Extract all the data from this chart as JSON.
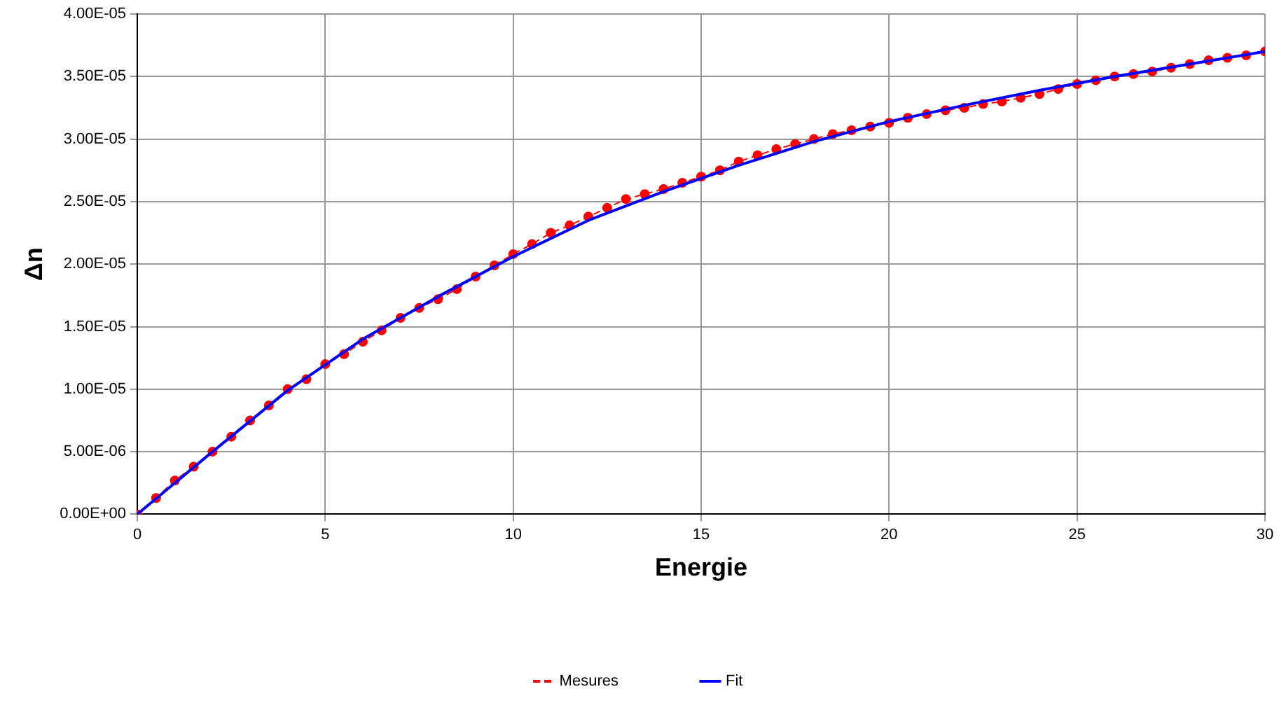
{
  "chart_data": {
    "type": "line",
    "xlabel": "Energie",
    "ylabel": "Δn",
    "xlim": [
      0,
      30
    ],
    "xticks": [
      0,
      5,
      10,
      15,
      20,
      25,
      30
    ],
    "ylim": [
      0,
      4e-05
    ],
    "yticks": [
      {
        "value": 0,
        "label": "0.00E+00"
      },
      {
        "value": 5e-06,
        "label": "5.00E-06"
      },
      {
        "value": 1e-05,
        "label": "1.00E-05"
      },
      {
        "value": 1.5e-05,
        "label": "1.50E-05"
      },
      {
        "value": 2e-05,
        "label": "2.00E-05"
      },
      {
        "value": 2.5e-05,
        "label": "2.50E-05"
      },
      {
        "value": 3e-05,
        "label": "3.00E-05"
      },
      {
        "value": 3.5e-05,
        "label": "3.50E-05"
      },
      {
        "value": 4e-05,
        "label": "4.00E-05"
      }
    ],
    "grid": true,
    "legend": "bottom",
    "series": [
      {
        "name": "Mesures",
        "color": "#ff0000",
        "marker": "circle",
        "line_style": "dashed",
        "x": [
          0,
          0.5,
          1,
          1.5,
          2,
          2.5,
          3,
          3.5,
          4,
          4.5,
          5,
          5.5,
          6,
          6.5,
          7,
          7.5,
          8,
          8.5,
          9,
          9.5,
          10,
          10.5,
          11,
          11.5,
          12,
          12.5,
          13,
          13.5,
          14,
          14.5,
          15,
          15.5,
          16,
          16.5,
          17,
          17.5,
          18,
          18.5,
          19,
          19.5,
          20,
          20.5,
          21,
          21.5,
          22,
          22.5,
          23,
          23.5,
          24,
          24.5,
          25,
          25.5,
          26,
          26.5,
          27,
          27.5,
          28,
          28.5,
          29,
          29.5,
          30
        ],
        "values": [
          0,
          1.3e-06,
          2.7e-06,
          3.8e-06,
          5e-06,
          6.2e-06,
          7.5e-06,
          8.7e-06,
          1e-05,
          1.08e-05,
          1.2e-05,
          1.28e-05,
          1.38e-05,
          1.47e-05,
          1.57e-05,
          1.65e-05,
          1.72e-05,
          1.8e-05,
          1.9e-05,
          1.99e-05,
          2.08e-05,
          2.16e-05,
          2.25e-05,
          2.31e-05,
          2.38e-05,
          2.45e-05,
          2.52e-05,
          2.56e-05,
          2.6e-05,
          2.65e-05,
          2.7e-05,
          2.75e-05,
          2.82e-05,
          2.87e-05,
          2.92e-05,
          2.96e-05,
          3e-05,
          3.04e-05,
          3.07e-05,
          3.1e-05,
          3.13e-05,
          3.17e-05,
          3.2e-05,
          3.23e-05,
          3.25e-05,
          3.28e-05,
          3.3e-05,
          3.33e-05,
          3.36e-05,
          3.4e-05,
          3.44e-05,
          3.47e-05,
          3.5e-05,
          3.52e-05,
          3.54e-05,
          3.57e-05,
          3.6e-05,
          3.63e-05,
          3.65e-05,
          3.67e-05,
          3.7e-05
        ]
      },
      {
        "name": "Fit",
        "color": "#0000ff",
        "marker": "none",
        "line_style": "solid",
        "x": [
          0,
          2,
          4,
          6,
          8,
          10,
          12,
          14,
          16,
          18,
          20,
          22,
          24,
          26,
          28,
          30
        ],
        "values": [
          0,
          5e-06,
          9.9e-06,
          1.4e-05,
          1.74e-05,
          2.06e-05,
          2.35e-05,
          2.58e-05,
          2.79e-05,
          2.98e-05,
          3.14e-05,
          3.27e-05,
          3.39e-05,
          3.5e-05,
          3.6e-05,
          3.7e-05
        ]
      }
    ]
  }
}
